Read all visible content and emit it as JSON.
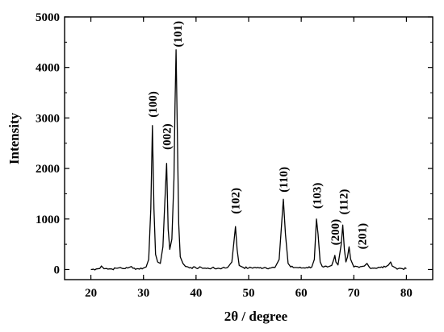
{
  "chart_data": {
    "type": "line",
    "title": "",
    "xlabel": "2θ / degree",
    "ylabel": "Intensity",
    "xlim": [
      15,
      85
    ],
    "ylim": [
      -200,
      5000
    ],
    "xticks": [
      20,
      30,
      40,
      50,
      60,
      70,
      80
    ],
    "yticks": [
      0,
      1000,
      2000,
      3000,
      4000,
      5000
    ],
    "xtick_labels": [
      "20",
      "30",
      "40",
      "50",
      "60",
      "70",
      "80"
    ],
    "ytick_labels": [
      "0",
      "1000",
      "2000",
      "3000",
      "4000",
      "5000"
    ],
    "grid": false,
    "legend": "none",
    "line_color": "#000000",
    "series": [
      {
        "values_x": [
          20.0,
          21.0,
          21.7,
          22.0,
          22.5,
          23.0,
          24.0,
          25.0,
          25.6,
          26.0,
          27.0,
          27.7,
          28.0,
          29.0,
          30.0,
          30.5,
          31.0,
          31.4,
          31.7,
          32.0,
          32.3,
          32.7,
          33.2,
          33.7,
          34.0,
          34.4,
          34.7,
          35.0,
          35.4,
          35.8,
          36.0,
          36.2,
          36.4,
          36.7,
          37.0,
          37.5,
          38.0,
          39.0,
          40.0,
          41.0,
          42.0,
          43.0,
          44.0,
          45.0,
          46.0,
          46.8,
          47.2,
          47.5,
          47.8,
          48.2,
          49.0,
          50.0,
          51.0,
          52.0,
          53.0,
          54.0,
          55.0,
          55.8,
          56.2,
          56.6,
          57.0,
          57.5,
          58.0,
          59.0,
          60.0,
          61.0,
          62.0,
          62.5,
          62.9,
          63.2,
          63.6,
          64.0,
          65.0,
          65.8,
          66.2,
          66.4,
          66.6,
          67.0,
          67.6,
          67.9,
          68.2,
          68.5,
          68.8,
          69.1,
          69.4,
          70.0,
          71.0,
          72.0,
          72.5,
          73.0,
          74.0,
          75.0,
          76.0,
          76.6,
          77.0,
          77.3,
          78.0,
          79.0,
          80.0
        ],
        "values_y": [
          0,
          10,
          20,
          70,
          15,
          20,
          10,
          25,
          40,
          20,
          30,
          60,
          25,
          15,
          30,
          50,
          200,
          1200,
          2850,
          1200,
          300,
          150,
          120,
          450,
          1200,
          2100,
          800,
          400,
          600,
          1800,
          3250,
          4350,
          3000,
          900,
          250,
          120,
          60,
          40,
          30,
          40,
          20,
          30,
          20,
          30,
          40,
          150,
          550,
          850,
          400,
          80,
          40,
          30,
          40,
          30,
          40,
          30,
          40,
          200,
          800,
          1390,
          700,
          120,
          50,
          40,
          30,
          40,
          50,
          200,
          1000,
          700,
          150,
          60,
          50,
          80,
          200,
          280,
          150,
          90,
          500,
          880,
          400,
          150,
          250,
          450,
          200,
          50,
          40,
          70,
          120,
          40,
          30,
          40,
          50,
          90,
          150,
          70,
          30,
          20,
          15
        ]
      }
    ],
    "annotations": [
      {
        "text": "(100)",
        "x": 31.7,
        "y": 3270
      },
      {
        "text": "(002)",
        "x": 34.4,
        "y": 2630
      },
      {
        "text": "(101)",
        "x": 36.5,
        "y": 4660
      },
      {
        "text": "(102)",
        "x": 47.5,
        "y": 1360
      },
      {
        "text": "(110)",
        "x": 56.6,
        "y": 1780
      },
      {
        "text": "(103)",
        "x": 63.0,
        "y": 1460
      },
      {
        "text": "(200)",
        "x": 66.4,
        "y": 740
      },
      {
        "text": "(112)",
        "x": 68.0,
        "y": 1340
      },
      {
        "text": "(201)",
        "x": 71.6,
        "y": 660
      }
    ]
  }
}
